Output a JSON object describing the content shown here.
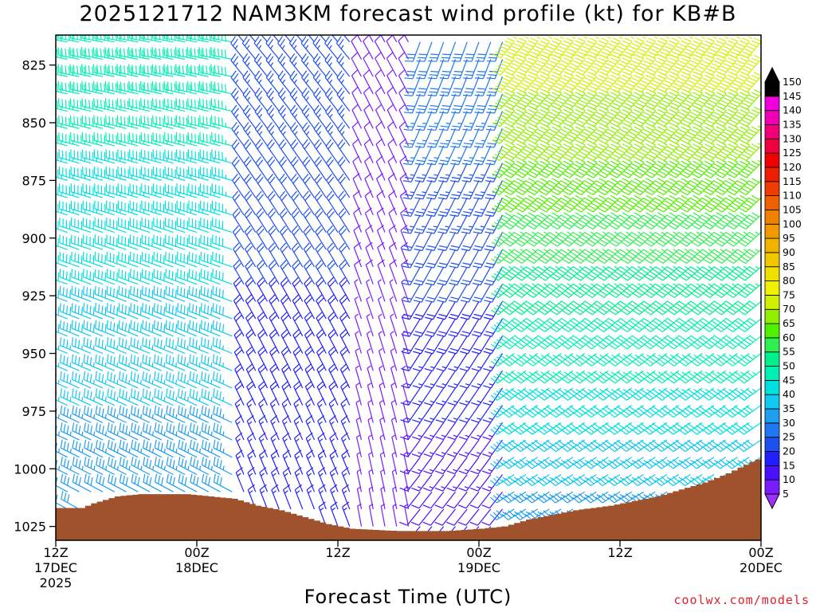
{
  "chart_data": {
    "type": "wind-barb-time-height",
    "title": "2025121712 NAM3KM forecast wind profile (kt) for KB#B",
    "xlabel": "Forecast Time (UTC)",
    "ylabel": "",
    "credit": "coolwx.com/models",
    "x_range_hours": [
      0,
      60
    ],
    "y_range_hpa": [
      812,
      1031
    ],
    "y_ticks": [
      825,
      850,
      875,
      900,
      925,
      950,
      975,
      1000,
      1025
    ],
    "x_ticks": [
      {
        "hour": 0,
        "line1": "12Z",
        "line2": "17DEC",
        "line3": "2025"
      },
      {
        "hour": 12,
        "line1": "00Z",
        "line2": "18DEC",
        "line3": ""
      },
      {
        "hour": 24,
        "line1": "12Z",
        "line2": "",
        "line3": ""
      },
      {
        "hour": 36,
        "line1": "00Z",
        "line2": "19DEC",
        "line3": ""
      },
      {
        "hour": 48,
        "line1": "12Z",
        "line2": "",
        "line3": ""
      },
      {
        "hour": 60,
        "line1": "00Z",
        "line2": "20DEC",
        "line3": ""
      }
    ],
    "colorbar": {
      "levels": [
        5,
        10,
        15,
        20,
        25,
        30,
        35,
        40,
        45,
        50,
        55,
        60,
        65,
        70,
        75,
        80,
        85,
        90,
        95,
        100,
        105,
        110,
        115,
        120,
        125,
        130,
        135,
        140,
        145,
        150
      ],
      "colors": [
        "#9b30ff",
        "#7a1cff",
        "#4a10ff",
        "#2020ff",
        "#1e50f0",
        "#1e78f0",
        "#1e9ef0",
        "#10c8f0",
        "#00e0e0",
        "#00f0b4",
        "#00f08c",
        "#30f050",
        "#50f000",
        "#90f000",
        "#d0f000",
        "#f0f000",
        "#f0e000",
        "#f0c800",
        "#f0b400",
        "#f09a00",
        "#f08000",
        "#f06000",
        "#f03c00",
        "#f01e00",
        "#f00000",
        "#f0003c",
        "#f00078",
        "#f000b4",
        "#f000dc",
        "#000000"
      ]
    },
    "ground_pressure_hpa": [
      {
        "hour": 0,
        "p": 1017
      },
      {
        "hour": 2,
        "p": 1017
      },
      {
        "hour": 3,
        "p": 1015
      },
      {
        "hour": 5,
        "p": 1012
      },
      {
        "hour": 7,
        "p": 1011
      },
      {
        "hour": 9,
        "p": 1011
      },
      {
        "hour": 11,
        "p": 1011
      },
      {
        "hour": 13,
        "p": 1012
      },
      {
        "hour": 15,
        "p": 1013
      },
      {
        "hour": 17,
        "p": 1016
      },
      {
        "hour": 19,
        "p": 1018
      },
      {
        "hour": 21,
        "p": 1021
      },
      {
        "hour": 23,
        "p": 1024
      },
      {
        "hour": 25,
        "p": 1026
      },
      {
        "hour": 29,
        "p": 1027
      },
      {
        "hour": 33,
        "p": 1027
      },
      {
        "hour": 36,
        "p": 1026
      },
      {
        "hour": 38,
        "p": 1025
      },
      {
        "hour": 40,
        "p": 1022
      },
      {
        "hour": 42,
        "p": 1020
      },
      {
        "hour": 44,
        "p": 1018
      },
      {
        "hour": 47,
        "p": 1016
      },
      {
        "hour": 49,
        "p": 1014
      },
      {
        "hour": 51,
        "p": 1012
      },
      {
        "hour": 53,
        "p": 1009
      },
      {
        "hour": 55,
        "p": 1006
      },
      {
        "hour": 57,
        "p": 1002
      },
      {
        "hour": 59,
        "p": 997
      },
      {
        "hour": 60,
        "p": 995
      }
    ],
    "wind_regimes": [
      {
        "hours": [
          0,
          15
        ],
        "direction_deg": 290,
        "speed_kt_low": 30,
        "speed_kt_high": 50
      },
      {
        "hours": [
          16,
          25
        ],
        "direction_deg": 330,
        "speed_kt_low": 15,
        "speed_kt_high": 25
      },
      {
        "hours": [
          26,
          30
        ],
        "direction_deg": 340,
        "speed_kt_low": 5,
        "speed_kt_high": 10
      },
      {
        "hours": [
          31,
          38
        ],
        "direction_deg": 210,
        "speed_kt_low": 10,
        "speed_kt_high": 30
      },
      {
        "hours": [
          39,
          60
        ],
        "direction_deg": 230,
        "speed_kt_low": 30,
        "speed_kt_high": 75
      }
    ]
  }
}
